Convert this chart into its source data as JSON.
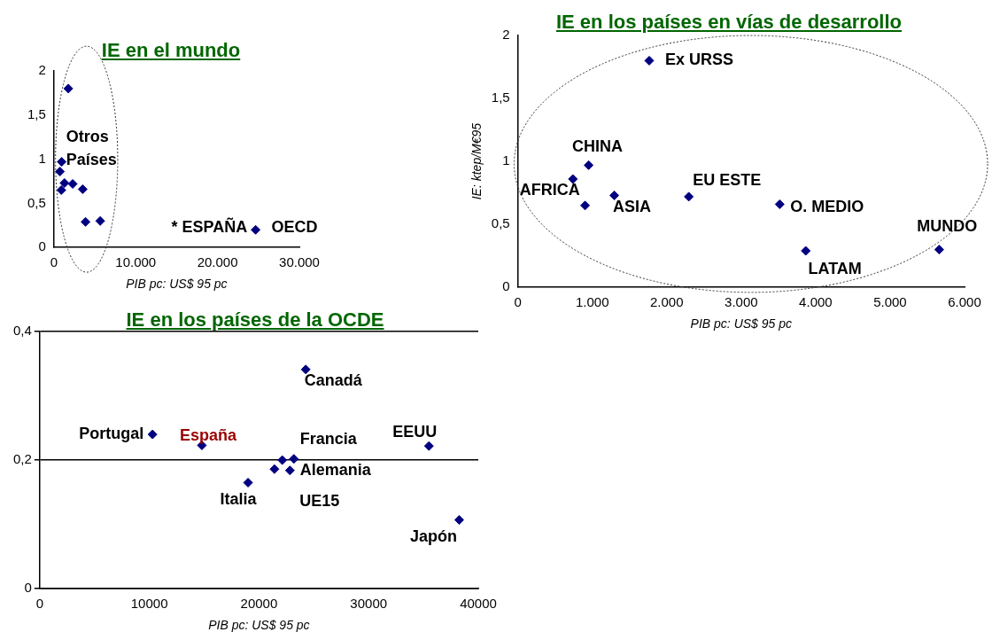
{
  "chart_data": [
    {
      "type": "scatter",
      "title": "IE en el mundo",
      "xlabel": "PIB pc: US$ 95 pc",
      "color": "#000080",
      "marker": "diamond",
      "x": [
        1765,
        951,
        739,
        903,
        1296,
        2296,
        3517,
        3867,
        5659,
        24650
      ],
      "values": [
        1.8,
        0.97,
        0.86,
        0.65,
        0.73,
        0.72,
        0.66,
        0.29,
        0.3,
        0.2
      ],
      "xlim": [
        0,
        30000
      ],
      "xticks": [
        0,
        {
          "value": 10000,
          "label": "10.000"
        },
        {
          "value": 20000,
          "label": "20.000"
        },
        {
          "value": 30000,
          "label": "30.000"
        }
      ],
      "ylim": [
        0,
        2
      ],
      "yticks": [
        0,
        {
          "value": 0.5,
          "label": "0,5"
        },
        1,
        {
          "value": 1.5,
          "label": "1,5"
        },
        2
      ],
      "annotations": [
        "Otros Países",
        "* ESPAÑA",
        {
          "text": "OECD",
          "x": 24650,
          "y": 0.2
        }
      ]
    },
    {
      "type": "scatter",
      "title": "IE en los países en vías de desarrollo",
      "xlabel": "PIB pc: US$ 95 pc",
      "ylabel": "IE: ktep/M€95",
      "color": "#000080",
      "marker": "diamond",
      "x": [
        1765,
        951,
        739,
        903,
        1296,
        2296,
        3517,
        3867,
        5659
      ],
      "values": [
        1.8,
        0.97,
        0.86,
        0.65,
        0.73,
        0.72,
        0.66,
        0.29,
        0.3
      ],
      "xlim": [
        0,
        6000
      ],
      "xticks": [
        0,
        {
          "value": 1000,
          "label": "1.000"
        },
        {
          "value": 2000,
          "label": "2.000"
        },
        {
          "value": 3000,
          "label": "3.000"
        },
        {
          "value": 4000,
          "label": "4.000"
        },
        {
          "value": 5000,
          "label": "5.000"
        },
        {
          "value": 6000,
          "label": "6.000"
        }
      ],
      "ylim": [
        0,
        2
      ],
      "yticks": [
        0,
        {
          "value": 0.5,
          "label": "0,5"
        },
        1,
        {
          "value": 1.5,
          "label": "1,5"
        },
        2
      ],
      "annotations": [
        {
          "text": "Ex URSS",
          "x": 1765,
          "y": 1.8
        },
        {
          "text": "CHINA",
          "x": 951,
          "y": 0.97
        },
        {
          "text": "AFRICA",
          "x": 739,
          "y": 0.86
        },
        {
          "text": "ASIA",
          "x": 1296,
          "y": 0.73
        },
        {
          "text": "EU ESTE",
          "x": 2296,
          "y": 0.72
        },
        {
          "text": "O. MEDIO",
          "x": 3517,
          "y": 0.66
        },
        {
          "text": "LATAM",
          "x": 3867,
          "y": 0.29
        },
        {
          "text": "MUNDO",
          "x": 5659,
          "y": 0.3
        }
      ]
    },
    {
      "type": "scatter",
      "title": "IE en los países de la OCDE",
      "xlabel": "PIB pc: US$ 95 pc",
      "color": "#000080",
      "marker": "diamond",
      "grid": "y",
      "x": [
        10290,
        14790,
        24260,
        19000,
        21410,
        22120,
        22820,
        23180,
        35500,
        38260
      ],
      "values": [
        0.24,
        0.223,
        0.341,
        0.165,
        0.186,
        0.2,
        0.184,
        0.202,
        0.222,
        0.107
      ],
      "xlim": [
        0,
        40000
      ],
      "xticks": [
        0,
        10000,
        20000,
        30000,
        40000
      ],
      "ylim": [
        0,
        0.4
      ],
      "yticks": [
        0,
        {
          "value": 0.2,
          "label": "0,2"
        },
        {
          "value": 0.4,
          "label": "0,4"
        }
      ],
      "annotations": [
        {
          "text": "Portugal",
          "x": 10290,
          "y": 0.24
        },
        {
          "text": "España",
          "x": 14790,
          "y": 0.223
        },
        {
          "text": "Canadá",
          "x": 24260,
          "y": 0.341
        },
        {
          "text": "Italia",
          "x": 19000,
          "y": 0.165
        },
        {
          "text": "Francia",
          "x": 23180,
          "y": 0.202
        },
        {
          "text": "Alemania",
          "x": 22120,
          "y": 0.2
        },
        {
          "text": "UE15",
          "x": 22820,
          "y": 0.184
        },
        {
          "text": "EEUU",
          "x": 35500,
          "y": 0.222
        },
        {
          "text": "Japón",
          "x": 38260,
          "y": 0.107
        }
      ]
    }
  ]
}
